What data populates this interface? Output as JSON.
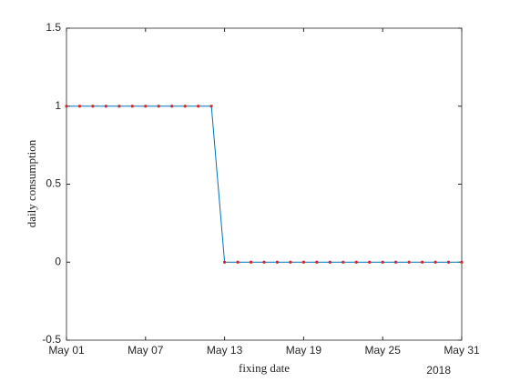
{
  "chart_data": {
    "type": "line",
    "xlabel": "fixing date",
    "ylabel": "daily consumption",
    "x_secondary_label": "2018",
    "x": [
      "2018-05-01",
      "2018-05-02",
      "2018-05-03",
      "2018-05-04",
      "2018-05-05",
      "2018-05-06",
      "2018-05-07",
      "2018-05-08",
      "2018-05-09",
      "2018-05-10",
      "2018-05-11",
      "2018-05-12",
      "2018-05-13",
      "2018-05-14",
      "2018-05-15",
      "2018-05-16",
      "2018-05-17",
      "2018-05-18",
      "2018-05-19",
      "2018-05-20",
      "2018-05-21",
      "2018-05-22",
      "2018-05-23",
      "2018-05-24",
      "2018-05-25",
      "2018-05-26",
      "2018-05-27",
      "2018-05-28",
      "2018-05-29",
      "2018-05-30",
      "2018-05-31"
    ],
    "series": [
      {
        "color": "#0072bd",
        "marker_color": "#d62728",
        "values": [
          1,
          1,
          1,
          1,
          1,
          1,
          1,
          1,
          1,
          1,
          1,
          1,
          0,
          0,
          0,
          0,
          0,
          0,
          0,
          0,
          0,
          0,
          0,
          0,
          0,
          0,
          0,
          0,
          0,
          0,
          0
        ]
      }
    ],
    "xlim": [
      "2018-05-01",
      "2018-05-31"
    ],
    "xticks": [
      {
        "value": "2018-05-01",
        "label": "May 01"
      },
      {
        "value": "2018-05-07",
        "label": "May 07"
      },
      {
        "value": "2018-05-13",
        "label": "May 13"
      },
      {
        "value": "2018-05-19",
        "label": "May 19"
      },
      {
        "value": "2018-05-25",
        "label": "May 25"
      },
      {
        "value": "2018-05-31",
        "label": "May 31"
      }
    ],
    "ylim": [
      -0.5,
      1.5
    ],
    "yticks": [
      -0.5,
      0,
      0.5,
      1,
      1.5
    ],
    "grid": false
  }
}
